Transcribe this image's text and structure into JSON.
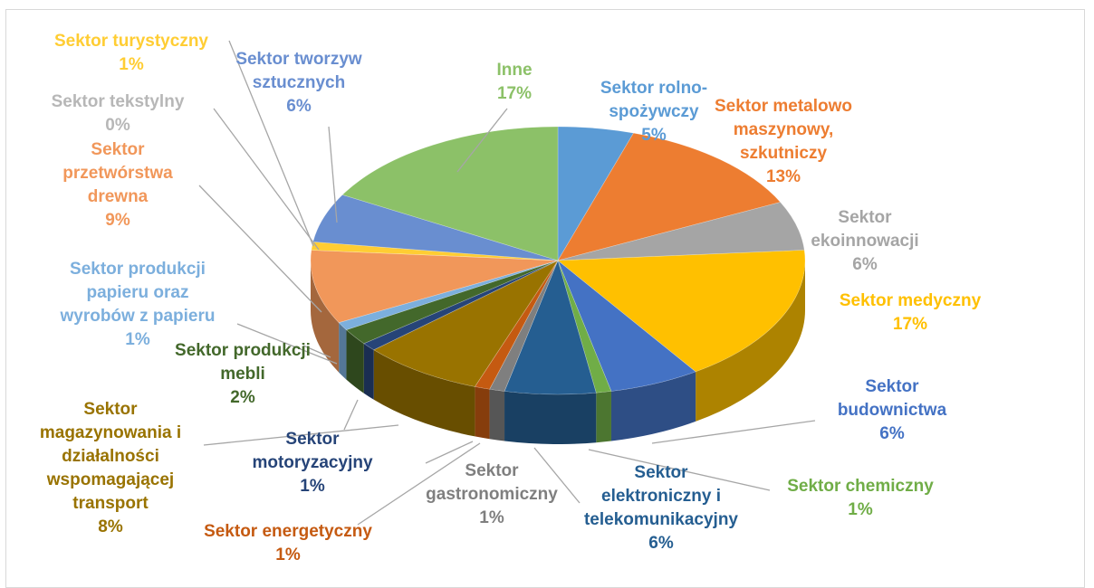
{
  "chart_data": {
    "type": "pie",
    "categories": [
      "Sektor rolno-\nspożywczy",
      "Sektor metalowo\nmaszynowy,\nszkutniczy",
      "Sektor\nekoinnowacji",
      "Sektor medyczny",
      "Sektor\nbudownictwa",
      "Sektor chemiczny",
      "Sektor\nelektroniczny i\ntelekomunikacyjny",
      "Sektor\ngastronomiczny",
      "Sektor energetyczny",
      "Sektor\nmagazynowania i\ndziałalności\nwspomagającej\ntransport",
      "Sektor\nmotoryzacyjny",
      "Sektor produkcji\nmebli",
      "Sektor produkcji\npapieru oraz\nwyrobów z papieru",
      "Sektor\nprzetwórstwa\ndrewna",
      "Sektor tekstylny",
      "Sektor turystyczny",
      "Sektor tworzyw\nsztucznych",
      "Inne"
    ],
    "values": [
      5,
      13,
      6,
      17,
      6,
      1,
      6,
      1,
      1,
      8,
      1,
      2,
      1,
      9,
      0,
      1,
      6,
      17
    ],
    "value_labels": [
      "5%",
      "13%",
      "6%",
      "17%",
      "6%",
      "1%",
      "6%",
      "1%",
      "1%",
      "8%",
      "1%",
      "2%",
      "1%",
      "9%",
      "0%",
      "1%",
      "6%",
      "17%"
    ],
    "colors": [
      "#5b9bd5",
      "#ed7d31",
      "#a5a5a5",
      "#ffc000",
      "#4472c4",
      "#70ad47",
      "#255e91",
      "#7f7f7f",
      "#c55a11",
      "#997300",
      "#264478",
      "#43682b",
      "#7cafdd",
      "#f1975a",
      "#b7b7b7",
      "#ffcd33",
      "#698ed0",
      "#8cc168"
    ]
  }
}
